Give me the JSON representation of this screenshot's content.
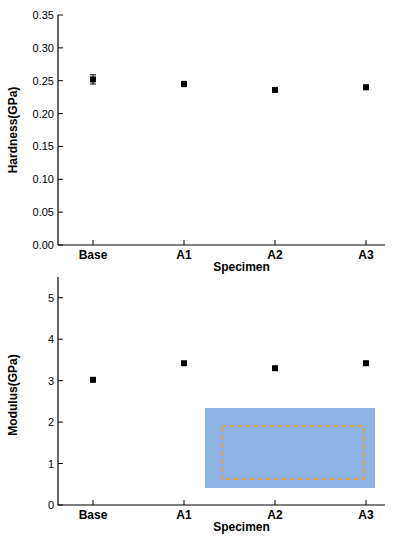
{
  "chart_data": [
    {
      "type": "scatter",
      "x_label": "Specimen",
      "y_label": "Hardness(GPa)",
      "categories": [
        "Base",
        "A1",
        "A2",
        "A3"
      ],
      "values": [
        0.252,
        0.245,
        0.236,
        0.24
      ],
      "errors": [
        0.007,
        0.004,
        0.003,
        0.003
      ],
      "color": "#000000",
      "marker": "square",
      "ylim": [
        0,
        0.35
      ],
      "yticks": [
        {
          "value": 0,
          "label": "0.00"
        },
        {
          "value": 0.05,
          "label": "0.05"
        },
        {
          "value": 0.1,
          "label": "0.10"
        },
        {
          "value": 0.15,
          "label": "0.15"
        },
        {
          "value": 0.2,
          "label": "0.20"
        },
        {
          "value": 0.25,
          "label": "0.25"
        },
        {
          "value": 0.3,
          "label": "0.30"
        },
        {
          "value": 0.35,
          "label": "0.35"
        }
      ],
      "grid": false
    },
    {
      "type": "scatter",
      "x_label": "Specimen",
      "y_label": "Modulus(GPa)",
      "categories": [
        "Base",
        "A1",
        "A2",
        "A3"
      ],
      "values": [
        3.02,
        3.42,
        3.3,
        3.42
      ],
      "errors": [
        0.02,
        0.03,
        0.03,
        0.03
      ],
      "color": "#000000",
      "marker": "square",
      "ylim": [
        0,
        5.5
      ],
      "yticks": [
        0,
        1,
        2,
        3,
        4,
        5
      ],
      "grid": false
    }
  ]
}
